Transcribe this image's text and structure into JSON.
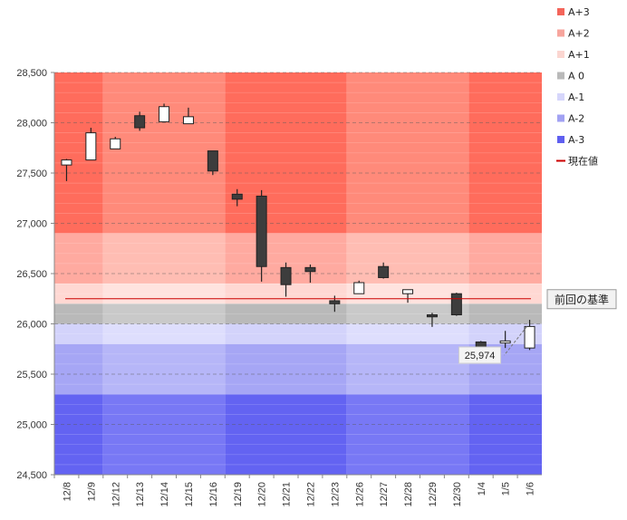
{
  "chart_data": {
    "type": "candlestick",
    "ylim": [
      24500,
      28500
    ],
    "yticks": [
      24500,
      25000,
      25500,
      26000,
      26500,
      27000,
      27500,
      28000,
      28500
    ],
    "ytick_labels": [
      "24,500",
      "25,000",
      "25,500",
      "26,000",
      "26,500",
      "27,000",
      "27,500",
      "28,000",
      "28,500"
    ],
    "categories": [
      "12/8",
      "12/9",
      "12/12",
      "12/13",
      "12/14",
      "12/15",
      "12/16",
      "12/19",
      "12/20",
      "12/21",
      "12/22",
      "12/23",
      "12/26",
      "12/27",
      "12/28",
      "12/29",
      "12/30",
      "1/4",
      "1/5",
      "1/6"
    ],
    "candles": [
      {
        "open": 27580,
        "high": 27640,
        "low": 27420,
        "close": 27630
      },
      {
        "open": 27630,
        "high": 27950,
        "low": 27630,
        "close": 27900
      },
      {
        "open": 27740,
        "high": 27860,
        "low": 27740,
        "close": 27840
      },
      {
        "open": 28070,
        "high": 28110,
        "low": 27920,
        "close": 27950
      },
      {
        "open": 28010,
        "high": 28190,
        "low": 28010,
        "close": 28160
      },
      {
        "open": 27990,
        "high": 28150,
        "low": 27990,
        "close": 28060
      },
      {
        "open": 27720,
        "high": 27720,
        "low": 27480,
        "close": 27520
      },
      {
        "open": 27290,
        "high": 27340,
        "low": 27170,
        "close": 27240
      },
      {
        "open": 27270,
        "high": 27330,
        "low": 26420,
        "close": 26570
      },
      {
        "open": 26560,
        "high": 26610,
        "low": 26270,
        "close": 26390
      },
      {
        "open": 26560,
        "high": 26590,
        "low": 26410,
        "close": 26520
      },
      {
        "open": 26230,
        "high": 26280,
        "low": 26120,
        "close": 26200
      },
      {
        "open": 26300,
        "high": 26430,
        "low": 26300,
        "close": 26410
      },
      {
        "open": 26570,
        "high": 26610,
        "low": 26450,
        "close": 26460
      },
      {
        "open": 26300,
        "high": 26340,
        "low": 26210,
        "close": 26340
      },
      {
        "open": 26090,
        "high": 26110,
        "low": 25970,
        "close": 26070
      },
      {
        "open": 26300,
        "high": 26310,
        "low": 26080,
        "close": 26090
      },
      {
        "open": 25820,
        "high": 25830,
        "low": 25680,
        "close": 25700
      },
      {
        "open": 25810,
        "high": 25930,
        "low": 25760,
        "close": 25830
      },
      {
        "open": 25760,
        "high": 26040,
        "low": 25740,
        "close": 25974
      }
    ],
    "bands": [
      {
        "name": "A+3",
        "from": 26900,
        "to": 28500,
        "color": "#ff6c5c",
        "color_alt": "#ff8a7a"
      },
      {
        "name": "A+2",
        "from": 26400,
        "to": 26900,
        "color": "#ffaaa0",
        "color_alt": "#ffbdb3"
      },
      {
        "name": "A+1",
        "from": 26200,
        "to": 26400,
        "color": "#ffd8d3",
        "color_alt": "#ffe3df"
      },
      {
        "name": "A 0",
        "from": 26000,
        "to": 26200,
        "color": "#b9b9b9",
        "color_alt": "#c9c9c9"
      },
      {
        "name": "A-1",
        "from": 25800,
        "to": 26000,
        "color": "#d3d3fb",
        "color_alt": "#dedefd"
      },
      {
        "name": "A-2",
        "from": 25300,
        "to": 25800,
        "color": "#a6a6f5",
        "color_alt": "#b6b6f8"
      },
      {
        "name": "A-3",
        "from": 24500,
        "to": 25300,
        "color": "#6363f2",
        "color_alt": "#7878f5"
      }
    ],
    "legend": [
      {
        "label": "A+3",
        "color": "#f4655a",
        "kind": "box"
      },
      {
        "label": "A+2",
        "color": "#f7a59d",
        "kind": "box"
      },
      {
        "label": "A+1",
        "color": "#fbd6d1",
        "kind": "box"
      },
      {
        "label": "A 0",
        "color": "#b9b9b9",
        "kind": "box"
      },
      {
        "label": "A-1",
        "color": "#d6d6fb",
        "kind": "box"
      },
      {
        "label": "A-2",
        "color": "#a2a2f3",
        "kind": "box"
      },
      {
        "label": "A-3",
        "color": "#5f5ff0",
        "kind": "box"
      },
      {
        "label": "現在値",
        "color": "#cc0000",
        "kind": "line"
      }
    ],
    "current_value": 26250,
    "current_value_color": "#cc0000",
    "annotation": {
      "label": "前回の基準"
    },
    "last_value_label": "25,974",
    "grid": true
  }
}
